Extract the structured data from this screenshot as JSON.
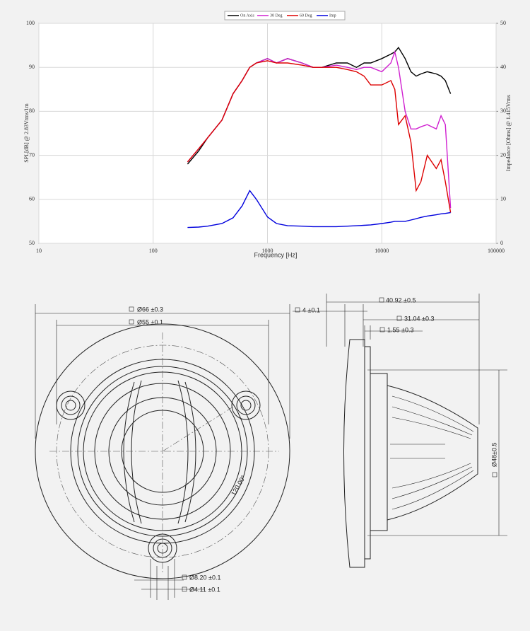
{
  "chart_data": {
    "type": "line",
    "x_label": "Frequency [Hz]",
    "y_label": "SPL[dB] @ 2.83Vrms/1m",
    "y2_label": "Impedance [Ohms] @ 1.415Vrms",
    "x_scale": "log",
    "grid": true,
    "legend": "top",
    "x": [
      200,
      250,
      300,
      400,
      500,
      600,
      700,
      800,
      1000,
      1200,
      1500,
      2000,
      2500,
      3000,
      4000,
      5000,
      6000,
      7000,
      8000,
      10000,
      12000,
      13000,
      14000,
      16000,
      18000,
      20000,
      22000,
      25000,
      30000,
      33000,
      36000,
      40000
    ],
    "series": [
      {
        "name": "On Axis",
        "color": "#000000",
        "values": [
          68,
          71,
          74,
          78,
          84,
          87,
          90,
          91,
          92,
          91,
          92,
          91,
          90,
          90,
          91,
          91,
          90,
          91,
          91,
          92,
          93,
          93.5,
          94.5,
          92,
          89,
          88,
          88.5,
          89,
          88.5,
          88,
          87,
          84
        ]
      },
      {
        "name": "30 Deg",
        "color": "#d020d0",
        "values": [
          68.5,
          71.5,
          74,
          78,
          84,
          87,
          90,
          91,
          92,
          91,
          92,
          91,
          90,
          90,
          90.5,
          90,
          89.5,
          90,
          90,
          89,
          91,
          93.5,
          90,
          80,
          76,
          76,
          76.5,
          77,
          76,
          79,
          77,
          58
        ]
      },
      {
        "name": "60 Deg",
        "color": "#dd0000",
        "values": [
          68.5,
          71.5,
          74,
          78,
          84,
          87,
          90,
          91,
          91.5,
          91,
          91,
          90.5,
          90,
          90,
          90,
          89.5,
          89,
          88,
          86,
          86,
          87,
          85,
          77,
          79,
          73,
          62,
          64,
          70,
          67,
          69,
          64,
          57
        ]
      },
      {
        "name": "Imp",
        "color": "#0000dd",
        "axis": "y2",
        "values": [
          3.6,
          3.7,
          3.9,
          4.5,
          5.8,
          8.5,
          12,
          10,
          6,
          4.5,
          4,
          3.9,
          3.8,
          3.8,
          3.8,
          3.9,
          4,
          4.1,
          4.2,
          4.5,
          4.8,
          5,
          5,
          5,
          5.3,
          5.6,
          5.9,
          6.2,
          6.5,
          6.7,
          6.8,
          7
        ]
      }
    ],
    "xlim": [
      10,
      100000
    ],
    "xticks": [
      10,
      100,
      1000,
      10000,
      100000
    ],
    "ylim": [
      50,
      100
    ],
    "yticks": [
      50,
      60,
      70,
      80,
      90,
      100
    ],
    "y2lim": [
      0,
      50
    ],
    "y2ticks": [
      0,
      10,
      20,
      30,
      40,
      50
    ]
  },
  "drawing": {
    "front_dimensions": [
      "Ø66 ±0.3",
      "Ø55 ±0.1",
      "120.00°",
      "Ø8.20 ±0.1",
      "Ø4.11 ±0.1"
    ],
    "side_dimensions": [
      "40.92 ±0.5",
      "4 ±0.1",
      "31.04 ±0.3",
      "1.55 ±0.3",
      "Ø48±0.5"
    ]
  }
}
